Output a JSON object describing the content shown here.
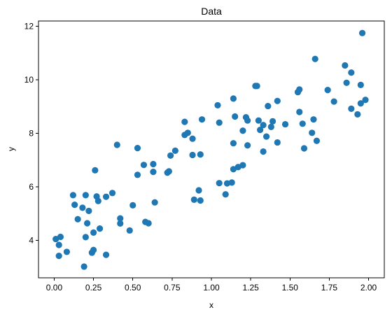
{
  "chart_data": {
    "type": "scatter",
    "title": "Data",
    "xlabel": "x",
    "ylabel": "y",
    "xlim": [
      -0.1,
      2.1
    ],
    "ylim": [
      2.6,
      12.2
    ],
    "xticks": [
      0.0,
      0.25,
      0.5,
      0.75,
      1.0,
      1.25,
      1.5,
      1.75,
      2.0
    ],
    "xtick_labels": [
      "0.00",
      "0.25",
      "0.50",
      "0.75",
      "1.00",
      "1.25",
      "1.50",
      "1.75",
      "2.00"
    ],
    "yticks": [
      4,
      6,
      8,
      10,
      12
    ],
    "ytick_labels": [
      "4",
      "6",
      "8",
      "10",
      "12"
    ],
    "grid": false,
    "legend": "none",
    "marker_color": "#1f77b4",
    "series": [
      {
        "points": [
          [
            0.01,
            4.05
          ],
          [
            0.03,
            3.83
          ],
          [
            0.04,
            4.13
          ],
          [
            0.03,
            3.42
          ],
          [
            0.08,
            3.57
          ],
          [
            0.12,
            5.69
          ],
          [
            0.13,
            5.33
          ],
          [
            0.15,
            4.79
          ],
          [
            0.18,
            5.22
          ],
          [
            0.2,
            5.69
          ],
          [
            0.21,
            4.64
          ],
          [
            0.22,
            5.1
          ],
          [
            0.2,
            4.12
          ],
          [
            0.19,
            3.02
          ],
          [
            0.24,
            3.54
          ],
          [
            0.25,
            3.64
          ],
          [
            0.25,
            4.29
          ],
          [
            0.26,
            6.62
          ],
          [
            0.27,
            5.64
          ],
          [
            0.28,
            5.47
          ],
          [
            0.29,
            4.44
          ],
          [
            0.33,
            5.63
          ],
          [
            0.33,
            3.46
          ],
          [
            0.37,
            5.77
          ],
          [
            0.4,
            7.57
          ],
          [
            0.42,
            4.82
          ],
          [
            0.42,
            4.63
          ],
          [
            0.48,
            4.37
          ],
          [
            0.5,
            5.31
          ],
          [
            0.53,
            6.45
          ],
          [
            0.53,
            7.45
          ],
          [
            0.57,
            6.82
          ],
          [
            0.58,
            4.69
          ],
          [
            0.6,
            4.64
          ],
          [
            0.63,
            6.85
          ],
          [
            0.63,
            6.56
          ],
          [
            0.64,
            5.42
          ],
          [
            0.72,
            6.53
          ],
          [
            0.73,
            6.58
          ],
          [
            0.74,
            7.17
          ],
          [
            0.77,
            7.35
          ],
          [
            0.83,
            8.43
          ],
          [
            0.83,
            7.94
          ],
          [
            0.85,
            8.02
          ],
          [
            0.88,
            7.8
          ],
          [
            0.88,
            7.19
          ],
          [
            0.89,
            5.52
          ],
          [
            0.92,
            5.87
          ],
          [
            0.93,
            5.49
          ],
          [
            0.94,
            8.52
          ],
          [
            0.93,
            7.21
          ],
          [
            1.04,
            9.05
          ],
          [
            1.05,
            8.4
          ],
          [
            1.05,
            6.14
          ],
          [
            1.09,
            5.72
          ],
          [
            1.1,
            6.13
          ],
          [
            1.13,
            6.16
          ],
          [
            1.14,
            6.66
          ],
          [
            1.14,
            7.63
          ],
          [
            1.14,
            9.3
          ],
          [
            1.15,
            8.63
          ],
          [
            1.17,
            6.74
          ],
          [
            1.2,
            6.81
          ],
          [
            1.2,
            8.1
          ],
          [
            1.22,
            8.6
          ],
          [
            1.23,
            8.48
          ],
          [
            1.23,
            7.55
          ],
          [
            1.28,
            9.77
          ],
          [
            1.29,
            9.77
          ],
          [
            1.3,
            8.48
          ],
          [
            1.31,
            8.13
          ],
          [
            1.33,
            8.31
          ],
          [
            1.33,
            7.32
          ],
          [
            1.35,
            7.88
          ],
          [
            1.36,
            9.02
          ],
          [
            1.38,
            8.24
          ],
          [
            1.39,
            8.45
          ],
          [
            1.42,
            7.66
          ],
          [
            1.42,
            9.21
          ],
          [
            1.47,
            8.34
          ],
          [
            1.55,
            9.54
          ],
          [
            1.56,
            9.64
          ],
          [
            1.56,
            8.8
          ],
          [
            1.58,
            8.36
          ],
          [
            1.59,
            7.44
          ],
          [
            1.64,
            8.02
          ],
          [
            1.65,
            8.52
          ],
          [
            1.66,
            10.78
          ],
          [
            1.67,
            7.72
          ],
          [
            1.74,
            9.62
          ],
          [
            1.78,
            9.19
          ],
          [
            1.85,
            10.54
          ],
          [
            1.86,
            9.89
          ],
          [
            1.89,
            10.27
          ],
          [
            1.89,
            8.92
          ],
          [
            1.93,
            8.71
          ],
          [
            1.95,
            9.81
          ],
          [
            1.95,
            9.12
          ],
          [
            1.96,
            11.75
          ],
          [
            1.98,
            9.25
          ]
        ]
      }
    ]
  }
}
